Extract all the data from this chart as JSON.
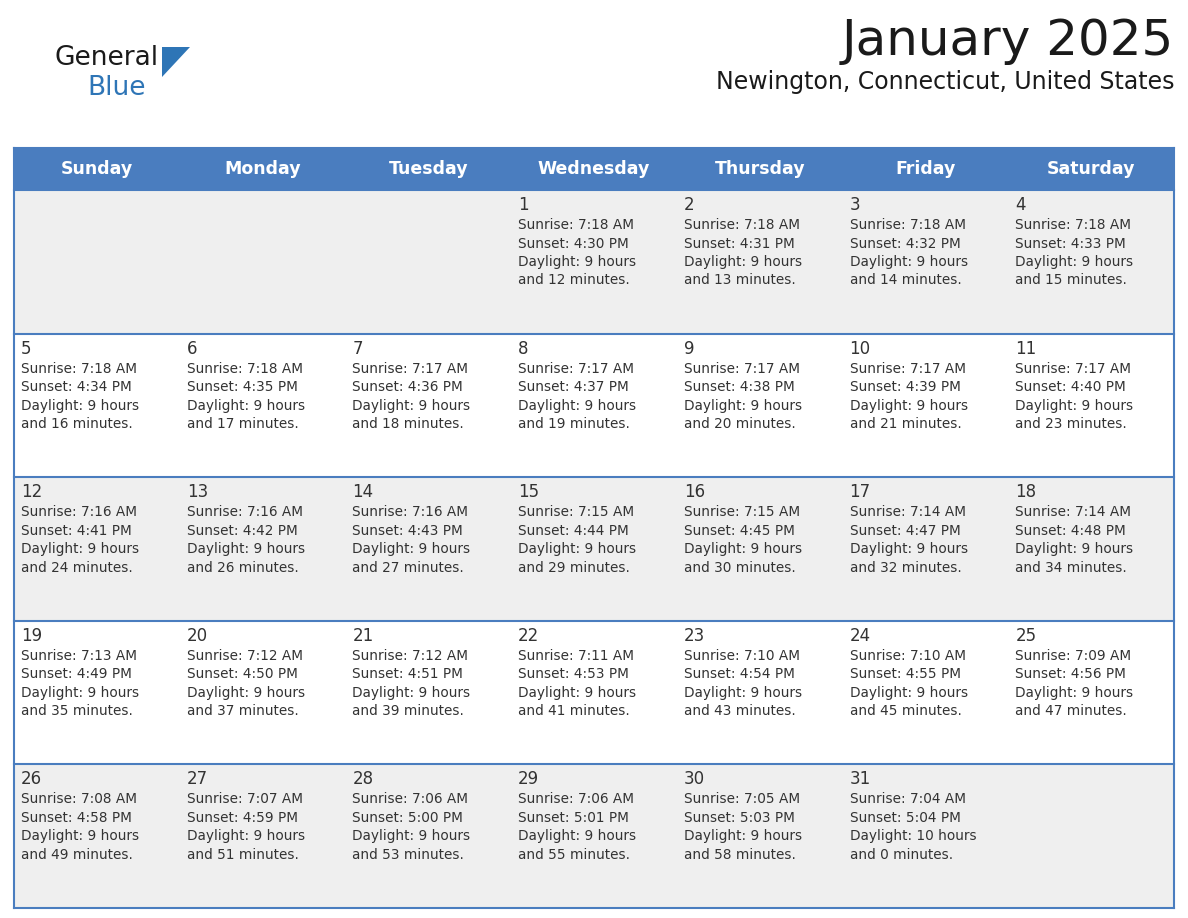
{
  "title": "January 2025",
  "subtitle": "Newington, Connecticut, United States",
  "days_of_week": [
    "Sunday",
    "Monday",
    "Tuesday",
    "Wednesday",
    "Thursday",
    "Friday",
    "Saturday"
  ],
  "header_bg": "#4a7dbf",
  "header_text_color": "#FFFFFF",
  "row_bg_light": "#EFEFEF",
  "row_bg_white": "#FFFFFF",
  "cell_text_color": "#333333",
  "day_num_color": "#333333",
  "grid_line_color": "#4a7dbf",
  "title_color": "#1a1a1a",
  "subtitle_color": "#1a1a1a",
  "logo_general_color": "#1a1a1a",
  "logo_blue_color": "#2E75B6",
  "calendar": [
    [
      {
        "day": "",
        "sunrise": "",
        "sunset": "",
        "daylight": ""
      },
      {
        "day": "",
        "sunrise": "",
        "sunset": "",
        "daylight": ""
      },
      {
        "day": "",
        "sunrise": "",
        "sunset": "",
        "daylight": ""
      },
      {
        "day": "1",
        "sunrise": "7:18 AM",
        "sunset": "4:30 PM",
        "daylight": "9 hours and 12 minutes."
      },
      {
        "day": "2",
        "sunrise": "7:18 AM",
        "sunset": "4:31 PM",
        "daylight": "9 hours and 13 minutes."
      },
      {
        "day": "3",
        "sunrise": "7:18 AM",
        "sunset": "4:32 PM",
        "daylight": "9 hours and 14 minutes."
      },
      {
        "day": "4",
        "sunrise": "7:18 AM",
        "sunset": "4:33 PM",
        "daylight": "9 hours and 15 minutes."
      }
    ],
    [
      {
        "day": "5",
        "sunrise": "7:18 AM",
        "sunset": "4:34 PM",
        "daylight": "9 hours and 16 minutes."
      },
      {
        "day": "6",
        "sunrise": "7:18 AM",
        "sunset": "4:35 PM",
        "daylight": "9 hours and 17 minutes."
      },
      {
        "day": "7",
        "sunrise": "7:17 AM",
        "sunset": "4:36 PM",
        "daylight": "9 hours and 18 minutes."
      },
      {
        "day": "8",
        "sunrise": "7:17 AM",
        "sunset": "4:37 PM",
        "daylight": "9 hours and 19 minutes."
      },
      {
        "day": "9",
        "sunrise": "7:17 AM",
        "sunset": "4:38 PM",
        "daylight": "9 hours and 20 minutes."
      },
      {
        "day": "10",
        "sunrise": "7:17 AM",
        "sunset": "4:39 PM",
        "daylight": "9 hours and 21 minutes."
      },
      {
        "day": "11",
        "sunrise": "7:17 AM",
        "sunset": "4:40 PM",
        "daylight": "9 hours and 23 minutes."
      }
    ],
    [
      {
        "day": "12",
        "sunrise": "7:16 AM",
        "sunset": "4:41 PM",
        "daylight": "9 hours and 24 minutes."
      },
      {
        "day": "13",
        "sunrise": "7:16 AM",
        "sunset": "4:42 PM",
        "daylight": "9 hours and 26 minutes."
      },
      {
        "day": "14",
        "sunrise": "7:16 AM",
        "sunset": "4:43 PM",
        "daylight": "9 hours and 27 minutes."
      },
      {
        "day": "15",
        "sunrise": "7:15 AM",
        "sunset": "4:44 PM",
        "daylight": "9 hours and 29 minutes."
      },
      {
        "day": "16",
        "sunrise": "7:15 AM",
        "sunset": "4:45 PM",
        "daylight": "9 hours and 30 minutes."
      },
      {
        "day": "17",
        "sunrise": "7:14 AM",
        "sunset": "4:47 PM",
        "daylight": "9 hours and 32 minutes."
      },
      {
        "day": "18",
        "sunrise": "7:14 AM",
        "sunset": "4:48 PM",
        "daylight": "9 hours and 34 minutes."
      }
    ],
    [
      {
        "day": "19",
        "sunrise": "7:13 AM",
        "sunset": "4:49 PM",
        "daylight": "9 hours and 35 minutes."
      },
      {
        "day": "20",
        "sunrise": "7:12 AM",
        "sunset": "4:50 PM",
        "daylight": "9 hours and 37 minutes."
      },
      {
        "day": "21",
        "sunrise": "7:12 AM",
        "sunset": "4:51 PM",
        "daylight": "9 hours and 39 minutes."
      },
      {
        "day": "22",
        "sunrise": "7:11 AM",
        "sunset": "4:53 PM",
        "daylight": "9 hours and 41 minutes."
      },
      {
        "day": "23",
        "sunrise": "7:10 AM",
        "sunset": "4:54 PM",
        "daylight": "9 hours and 43 minutes."
      },
      {
        "day": "24",
        "sunrise": "7:10 AM",
        "sunset": "4:55 PM",
        "daylight": "9 hours and 45 minutes."
      },
      {
        "day": "25",
        "sunrise": "7:09 AM",
        "sunset": "4:56 PM",
        "daylight": "9 hours and 47 minutes."
      }
    ],
    [
      {
        "day": "26",
        "sunrise": "7:08 AM",
        "sunset": "4:58 PM",
        "daylight": "9 hours and 49 minutes."
      },
      {
        "day": "27",
        "sunrise": "7:07 AM",
        "sunset": "4:59 PM",
        "daylight": "9 hours and 51 minutes."
      },
      {
        "day": "28",
        "sunrise": "7:06 AM",
        "sunset": "5:00 PM",
        "daylight": "9 hours and 53 minutes."
      },
      {
        "day": "29",
        "sunrise": "7:06 AM",
        "sunset": "5:01 PM",
        "daylight": "9 hours and 55 minutes."
      },
      {
        "day": "30",
        "sunrise": "7:05 AM",
        "sunset": "5:03 PM",
        "daylight": "9 hours and 58 minutes."
      },
      {
        "day": "31",
        "sunrise": "7:04 AM",
        "sunset": "5:04 PM",
        "daylight": "10 hours and 0 minutes."
      },
      {
        "day": "",
        "sunrise": "",
        "sunset": "",
        "daylight": ""
      }
    ]
  ],
  "row_bg_pattern": [
    1,
    0,
    1,
    0,
    1
  ]
}
